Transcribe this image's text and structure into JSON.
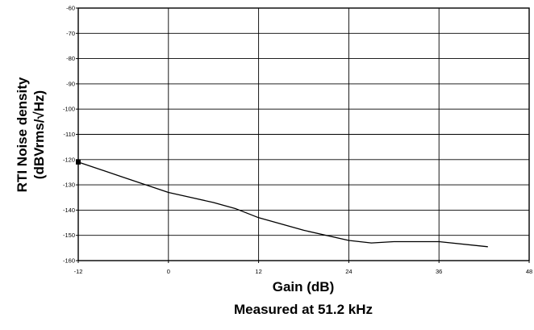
{
  "chart_data": {
    "type": "line",
    "title": "",
    "xlabel": "Gain (dB)",
    "xlabel_note": "Measured at 51.2 kHz",
    "ylabel_line1": "RTI Noise density",
    "ylabel_line2": "(dBVrms/√Hz)",
    "xlim": [
      -12,
      48
    ],
    "ylim": [
      -160,
      -60
    ],
    "x_ticks": [
      -12,
      0,
      12,
      24,
      36,
      48
    ],
    "y_ticks": [
      -60,
      -70,
      -80,
      -90,
      -100,
      -110,
      -120,
      -130,
      -140,
      -150,
      -160
    ],
    "x_tick_labels": [
      "-12",
      "0",
      "12",
      "24",
      "36",
      "48"
    ],
    "y_tick_labels": [
      "-60",
      "-70",
      "-80",
      "-90",
      "-100",
      "-110",
      "-120",
      "-130",
      "-140",
      "-150",
      "-160"
    ],
    "grid": true,
    "legend": "none",
    "colors": {
      "line": "#000000",
      "grid": "#000000",
      "background": "#ffffff"
    },
    "series": [
      {
        "marker_first_point": true,
        "x": [
          -12,
          -6,
          0,
          3,
          6,
          9,
          12,
          18,
          24,
          27,
          30,
          36,
          42.5
        ],
        "y": [
          -121,
          -127,
          -133,
          -135,
          -137,
          -139.5,
          -143,
          -148,
          -152,
          -153,
          -152.5,
          -152.5,
          -154.5
        ]
      }
    ]
  }
}
